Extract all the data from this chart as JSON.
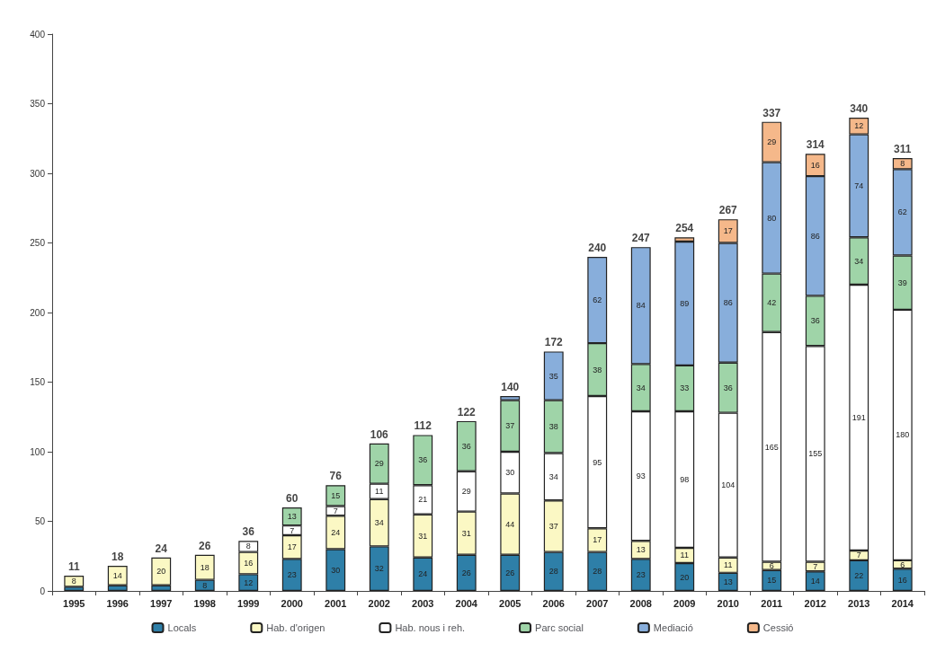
{
  "chart_data": {
    "type": "bar",
    "stacked": true,
    "categories": [
      "1995",
      "1996",
      "1997",
      "1998",
      "1999",
      "2000",
      "2001",
      "2002",
      "2003",
      "2004",
      "2005",
      "2006",
      "2007",
      "2008",
      "2009",
      "2010",
      "2011",
      "2012",
      "2013",
      "2014"
    ],
    "series": [
      {
        "name": "Locals",
        "color": "#2e7fa8",
        "values": [
          3,
          4,
          4,
          8,
          12,
          23,
          30,
          32,
          24,
          26,
          26,
          28,
          28,
          23,
          20,
          13,
          15,
          14,
          22,
          16
        ],
        "value_labels": [
          null,
          null,
          null,
          "8",
          "12",
          "23",
          "30",
          "32",
          "24",
          "26",
          "26",
          "28",
          "28",
          "23",
          "20",
          "13",
          "15",
          "14",
          "22",
          "16"
        ]
      },
      {
        "name": "Hab. d'origen",
        "color": "#fbf8c4",
        "values": [
          8,
          14,
          20,
          18,
          16,
          17,
          24,
          34,
          31,
          31,
          44,
          37,
          17,
          13,
          11,
          11,
          6,
          7,
          7,
          6
        ]
      },
      {
        "name": "Hab. nous i reh.",
        "color": "#ffffff",
        "values": [
          null,
          null,
          null,
          null,
          8,
          7,
          7,
          11,
          21,
          29,
          30,
          34,
          95,
          93,
          98,
          104,
          165,
          155,
          191,
          180
        ]
      },
      {
        "name": "Parc social",
        "color": "#9fd4a8",
        "values": [
          null,
          null,
          null,
          null,
          null,
          13,
          15,
          29,
          36,
          36,
          37,
          38,
          38,
          34,
          33,
          36,
          42,
          36,
          34,
          39
        ]
      },
      {
        "name": "Mediació",
        "color": "#88aedb",
        "values": [
          null,
          null,
          null,
          null,
          null,
          null,
          null,
          null,
          null,
          null,
          3,
          35,
          62,
          84,
          89,
          86,
          80,
          86,
          74,
          62
        ],
        "value_labels": [
          null,
          null,
          null,
          null,
          null,
          null,
          null,
          null,
          null,
          null,
          null,
          "35",
          "62",
          "84",
          "89",
          "86",
          "80",
          "86",
          "74",
          "62"
        ]
      },
      {
        "name": "Cessió",
        "color": "#f5b88a",
        "values": [
          null,
          null,
          null,
          null,
          null,
          null,
          null,
          null,
          null,
          null,
          null,
          null,
          null,
          null,
          3,
          17,
          29,
          16,
          12,
          8
        ],
        "value_labels": [
          null,
          null,
          null,
          null,
          null,
          null,
          null,
          null,
          null,
          null,
          null,
          null,
          null,
          null,
          null,
          "17",
          "29",
          "16",
          "12",
          "8"
        ]
      }
    ],
    "totals": [
      "11",
      "18",
      "24",
      "26",
      "36",
      "60",
      "76",
      "106",
      "112",
      "122",
      "140",
      "172",
      "240",
      "247",
      "254",
      "267",
      "337",
      "314",
      "340",
      "311"
    ],
    "ylim": [
      0,
      400
    ],
    "yticks": [
      0,
      50,
      100,
      150,
      200,
      250,
      300,
      350,
      400
    ],
    "data_labels": true,
    "grid": false,
    "legend": "bottom"
  }
}
